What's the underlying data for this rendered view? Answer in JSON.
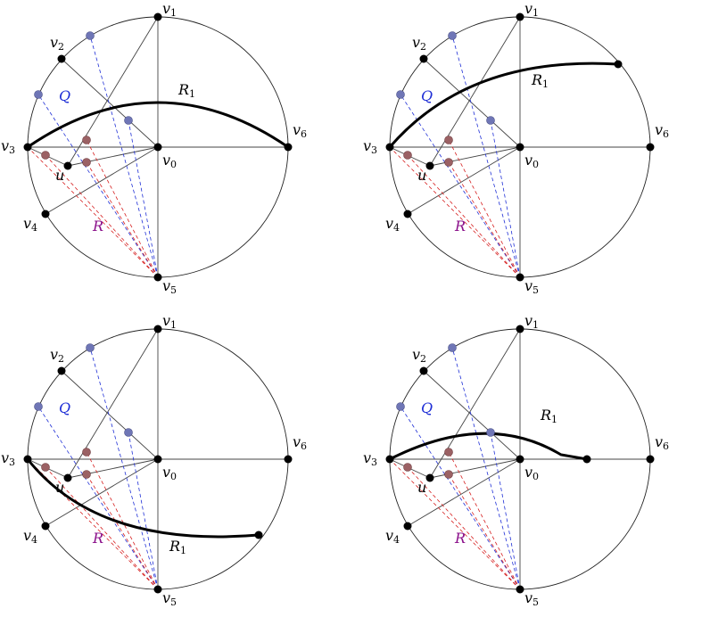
{
  "colors": {
    "circle": "#222222",
    "edge": "#444444",
    "blue": "#1f2fd6",
    "red": "#d61f1f",
    "vertex": "#000000",
    "q_point": "#6f76b6",
    "r_point": "#9b6164",
    "q_label": "#1f2fd6",
    "r_label": "#8a0f8a",
    "path": "#000000"
  },
  "labels": {
    "v0": {
      "base": "v",
      "sub": "0"
    },
    "v1": {
      "base": "v",
      "sub": "1"
    },
    "v2": {
      "base": "v",
      "sub": "2"
    },
    "v3": {
      "base": "v",
      "sub": "3"
    },
    "v4": {
      "base": "v",
      "sub": "4"
    },
    "v5": {
      "base": "v",
      "sub": "5"
    },
    "v6": {
      "base": "v",
      "sub": "6"
    },
    "u": "u",
    "Q": "Q",
    "R": "R",
    "R1": {
      "base": "R",
      "sub": "1"
    }
  },
  "panels": [
    {
      "id": "top-left"
    },
    {
      "id": "top-right"
    },
    {
      "id": "bottom-left"
    },
    {
      "id": "bottom-right"
    }
  ]
}
